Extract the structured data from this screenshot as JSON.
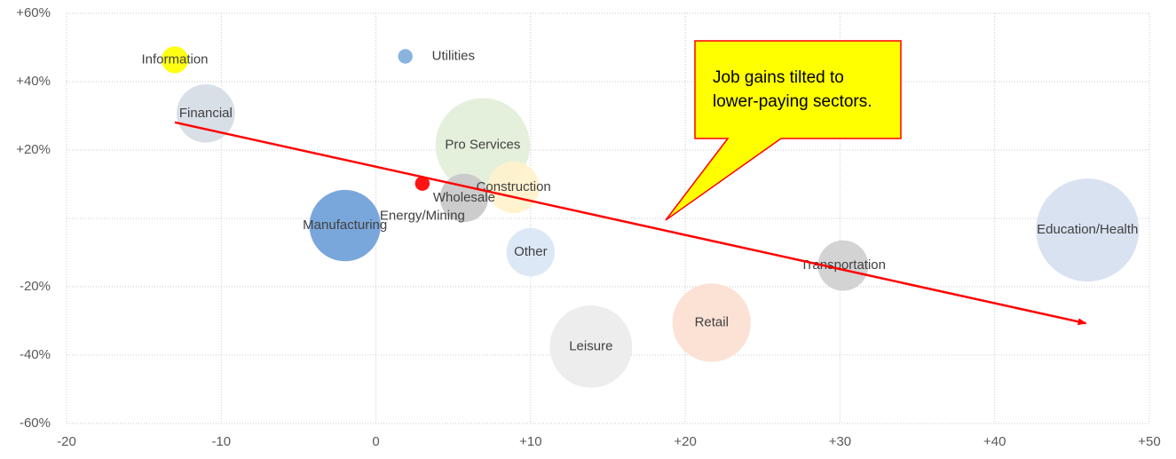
{
  "chart_data": {
    "type": "bubble",
    "xlim": [
      -20,
      50
    ],
    "xticks": [
      -20,
      -10,
      0,
      {
        "value": 10,
        "label": "+10"
      },
      {
        "value": 20,
        "label": "+20"
      },
      {
        "value": 30,
        "label": "+30"
      },
      {
        "value": 40,
        "label": "+40"
      },
      {
        "value": 50,
        "label": "+50"
      }
    ],
    "ylim": [
      -60,
      60
    ],
    "yticks": [
      {
        "value": -60,
        "label": "-60%"
      },
      {
        "value": -40,
        "label": "-40%"
      },
      {
        "value": -20,
        "label": "-20%"
      },
      {
        "value": 0,
        "label": null
      },
      {
        "value": 20,
        "label": "+20%"
      },
      {
        "value": 40,
        "label": "+40%"
      },
      {
        "value": 60,
        "label": "+60%"
      }
    ],
    "grid": true,
    "points": [
      {
        "name": "Education/Health",
        "color": "#d6dff0",
        "x": 46.0,
        "y": -3.4,
        "size": 25
      },
      {
        "name": "Pro Services",
        "color": "#e2efd9",
        "x": 6.9,
        "y": 21.4,
        "size": 21
      },
      {
        "name": "Leisure",
        "color": "#ebebeb",
        "x": 13.9,
        "y": -37.5,
        "size": 16
      },
      {
        "name": "Retail",
        "color": "#fbe0d0",
        "x": 21.7,
        "y": -30.5,
        "size": 14.5
      },
      {
        "name": "Manufacturing",
        "color": "#6f9fd8",
        "x": -2.0,
        "y": -2.1,
        "size": 12
      },
      {
        "name": "Financial",
        "color": "#d6dce5",
        "x": -11.0,
        "y": 30.7,
        "size": 8
      },
      {
        "name": "Construction",
        "color": "#fff2cc",
        "x": 8.9,
        "y": 9.1,
        "size": 6.3
      },
      {
        "name": "Transportation",
        "color": "#cfcfcf",
        "x": 30.2,
        "y": -13.8,
        "size": 6
      },
      {
        "name": "Wholesale",
        "color": "#c8c8c8",
        "x": 5.7,
        "y": 6.0,
        "size": 5.5
      },
      {
        "name": "Other",
        "color": "#dae6f5",
        "x": 10.0,
        "y": -9.9,
        "size": 5.5
      },
      {
        "name": "Information",
        "color": "#ffff00",
        "x": -13.0,
        "y": 46.4,
        "size": 1.7
      },
      {
        "name": "Utilities",
        "color": "#7fabdc",
        "x": 1.9,
        "y": 47.4,
        "size": 0.5
      },
      {
        "name": "Energy/Mining",
        "color": "#ff0000",
        "x": 3.0,
        "y": 10.2,
        "size": 0.5
      }
    ],
    "trend_line": {
      "color": "#ff0000",
      "x": [
        -13,
        45.9
      ],
      "y": [
        28.1,
        -30.7
      ]
    },
    "annotation": [
      "Job gains tilted to",
      "lower-paying sectors."
    ]
  }
}
